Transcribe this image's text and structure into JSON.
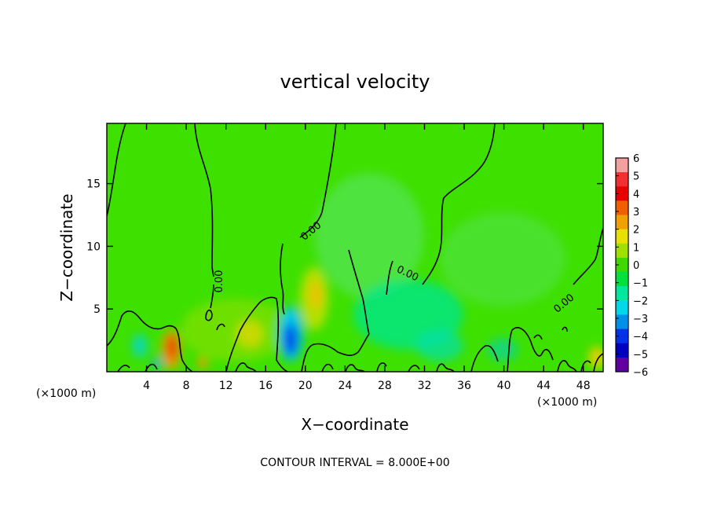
{
  "chart_data": {
    "type": "heatmap",
    "title": "vertical velocity",
    "xlabel": "X−coordinate",
    "ylabel": "Z−coordinate",
    "x_unit_left": "(×1000 m)",
    "x_unit_right": "(×1000 m)",
    "xlim": [
      0,
      50
    ],
    "ylim": [
      0,
      19.8
    ],
    "x_ticks": [
      4,
      8,
      12,
      16,
      20,
      24,
      28,
      32,
      36,
      40,
      44,
      48
    ],
    "y_ticks": [
      5,
      10,
      15
    ],
    "contour_interval_text": "CONTOUR INTERVAL = 8.000E+00",
    "contour_label": "0.00",
    "colorbar": {
      "ticks": [
        6,
        5,
        4,
        3,
        2,
        1,
        0,
        -1,
        -2,
        -3,
        -4,
        -5,
        -6
      ],
      "colors": [
        "#f4a0a0",
        "#f03030",
        "#e80000",
        "#f06000",
        "#f0a000",
        "#e8e000",
        "#a0e000",
        "#40d800",
        "#00e040",
        "#00e8a0",
        "#00d8e8",
        "#0090e8",
        "#0030e8",
        "#0000c0",
        "#6000a0"
      ]
    },
    "background_value": 0,
    "features": [
      {
        "x": 6.5,
        "z": 1.8,
        "value": 4.5
      },
      {
        "x": 18.5,
        "z": 2.8,
        "value": -3.5
      },
      {
        "x": 20.5,
        "z": 6.0,
        "value": 1.8
      },
      {
        "x": 14.0,
        "z": 3.0,
        "value": 1.0
      },
      {
        "x": 30.0,
        "z": 5.0,
        "value": -1.2
      },
      {
        "x": 49.5,
        "z": 1.0,
        "value": 2.0
      }
    ]
  }
}
